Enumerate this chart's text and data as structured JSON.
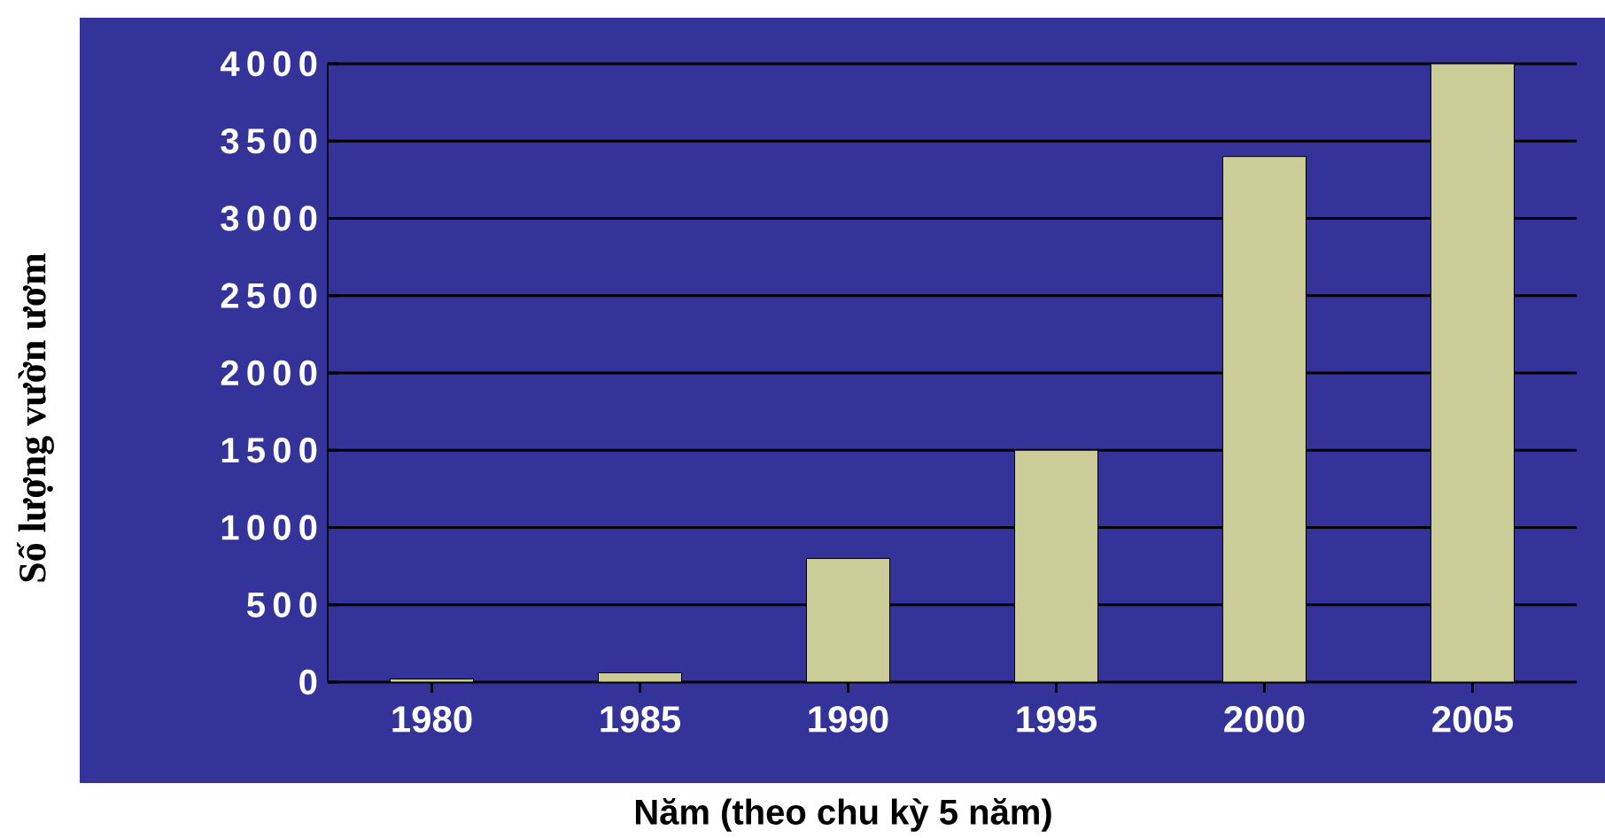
{
  "chart_data": {
    "type": "bar",
    "xlabel": "Năm (theo chu kỳ 5 năm)",
    "ylabel": "Số lượng vườn ươm",
    "categories": [
      "1980",
      "1985",
      "1990",
      "1995",
      "2000",
      "2005"
    ],
    "values": [
      20,
      60,
      800,
      1500,
      3400,
      4000
    ],
    "color": "#cccc99",
    "ylim": [
      0,
      4000
    ],
    "yticks": [
      0,
      500,
      1000,
      1500,
      2000,
      2500,
      3000,
      3500,
      4000
    ],
    "grid": "y"
  }
}
